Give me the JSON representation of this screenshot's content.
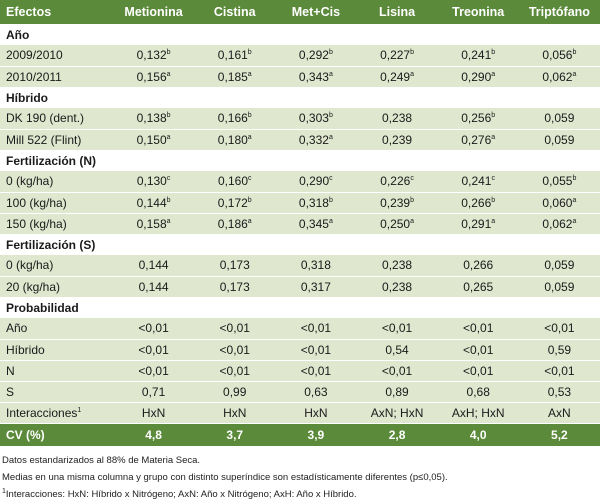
{
  "header": [
    "Efectos",
    "Metionina",
    "Cistina",
    "Met+Cis",
    "Lisina",
    "Treonina",
    "Triptófano"
  ],
  "sections": [
    {
      "title": "Año",
      "rows": [
        {
          "label": "2009/2010",
          "cells": [
            [
              "0,132",
              "b"
            ],
            [
              "0,161",
              "b"
            ],
            [
              "0,292",
              "b"
            ],
            [
              "0,227",
              "b"
            ],
            [
              "0,241",
              "b"
            ],
            [
              "0,056",
              "b"
            ]
          ]
        },
        {
          "label": "2010/2011",
          "cells": [
            [
              "0,156",
              "a"
            ],
            [
              "0,185",
              "a"
            ],
            [
              "0,343",
              "a"
            ],
            [
              "0,249",
              "a"
            ],
            [
              "0,290",
              "a"
            ],
            [
              "0,062",
              "a"
            ]
          ]
        }
      ]
    },
    {
      "title": "Híbrido",
      "rows": [
        {
          "label": "DK 190 (dent.)",
          "cells": [
            [
              "0,138",
              "b"
            ],
            [
              "0,166",
              "b"
            ],
            [
              "0,303",
              "b"
            ],
            [
              "0,238",
              ""
            ],
            [
              "0,256",
              "b"
            ],
            [
              "0,059",
              ""
            ]
          ]
        },
        {
          "label": "Mill 522 (Flint)",
          "cells": [
            [
              "0,150",
              "a"
            ],
            [
              "0,180",
              "a"
            ],
            [
              "0,332",
              "a"
            ],
            [
              "0,239",
              ""
            ],
            [
              "0,276",
              "a"
            ],
            [
              "0,059",
              ""
            ]
          ]
        }
      ]
    },
    {
      "title": "Fertilización (N)",
      "rows": [
        {
          "label": "0 (kg/ha)",
          "cells": [
            [
              "0,130",
              "c"
            ],
            [
              "0,160",
              "c"
            ],
            [
              "0,290",
              "c"
            ],
            [
              "0,226",
              "c"
            ],
            [
              "0,241",
              "c"
            ],
            [
              "0,055",
              "b"
            ]
          ]
        },
        {
          "label": "100 (kg/ha)",
          "cells": [
            [
              "0,144",
              "b"
            ],
            [
              "0,172",
              "b"
            ],
            [
              "0,318",
              "b"
            ],
            [
              "0,239",
              "b"
            ],
            [
              "0,266",
              "b"
            ],
            [
              "0,060",
              "a"
            ]
          ]
        },
        {
          "label": "150 (kg/ha)",
          "cells": [
            [
              "0,158",
              "a"
            ],
            [
              "0,186",
              "a"
            ],
            [
              "0,345",
              "a"
            ],
            [
              "0,250",
              "a"
            ],
            [
              "0,291",
              "a"
            ],
            [
              "0,062",
              "a"
            ]
          ]
        }
      ]
    },
    {
      "title": "Fertilización (S)",
      "rows": [
        {
          "label": "0 (kg/ha)",
          "cells": [
            [
              "0,144",
              ""
            ],
            [
              "0,173",
              ""
            ],
            [
              "0,318",
              ""
            ],
            [
              "0,238",
              ""
            ],
            [
              "0,266",
              ""
            ],
            [
              "0,059",
              ""
            ]
          ]
        },
        {
          "label": "20 (kg/ha)",
          "cells": [
            [
              "0,144",
              ""
            ],
            [
              "0,173",
              ""
            ],
            [
              "0,317",
              ""
            ],
            [
              "0,238",
              ""
            ],
            [
              "0,265",
              ""
            ],
            [
              "0,059",
              ""
            ]
          ]
        }
      ]
    },
    {
      "title": "Probabilidad",
      "rows": [
        {
          "label": "Año",
          "cells": [
            [
              "<0,01",
              ""
            ],
            [
              "<0,01",
              ""
            ],
            [
              "<0,01",
              ""
            ],
            [
              "<0,01",
              ""
            ],
            [
              "<0,01",
              ""
            ],
            [
              "<0,01",
              ""
            ]
          ]
        },
        {
          "label": "Híbrido",
          "cells": [
            [
              "<0,01",
              ""
            ],
            [
              "<0,01",
              ""
            ],
            [
              "<0,01",
              ""
            ],
            [
              "0,54",
              ""
            ],
            [
              "<0,01",
              ""
            ],
            [
              "0,59",
              ""
            ]
          ]
        },
        {
          "label": "N",
          "cells": [
            [
              "<0,01",
              ""
            ],
            [
              "<0,01",
              ""
            ],
            [
              "<0,01",
              ""
            ],
            [
              "<0,01",
              ""
            ],
            [
              "<0,01",
              ""
            ],
            [
              "<0,01",
              ""
            ]
          ]
        },
        {
          "label": "S",
          "cells": [
            [
              "0,71",
              ""
            ],
            [
              "0,99",
              ""
            ],
            [
              "0,63",
              ""
            ],
            [
              "0,89",
              ""
            ],
            [
              "0,68",
              ""
            ],
            [
              "0,53",
              ""
            ]
          ]
        },
        {
          "label": "Interacciones",
          "label_sup": "1",
          "cells": [
            [
              "HxN",
              ""
            ],
            [
              "HxN",
              ""
            ],
            [
              "HxN",
              ""
            ],
            [
              "AxN; HxN",
              ""
            ],
            [
              "AxH; HxN",
              ""
            ],
            [
              "AxN",
              ""
            ]
          ]
        }
      ]
    }
  ],
  "cv": {
    "label": "CV (%)",
    "values": [
      "4,8",
      "3,7",
      "3,9",
      "2,8",
      "4,0",
      "5,2"
    ]
  },
  "notes": {
    "n1": "Datos estandarizados al 88% de Materia Seca.",
    "n2": "Medias en una misma columna y grupo con distinto superíndice son estadísticamente diferentes (p≤0,05).",
    "n3_sup": "1",
    "n3": "Interacciones: HxN: Híbrido x Nitrógeno; AxN: Año x Nitrógeno; AxH: Año x Híbrido."
  },
  "colors": {
    "header_bg": "#5b8a3a",
    "row_bg": "#dfe7cf",
    "header_text": "#ffffff"
  }
}
